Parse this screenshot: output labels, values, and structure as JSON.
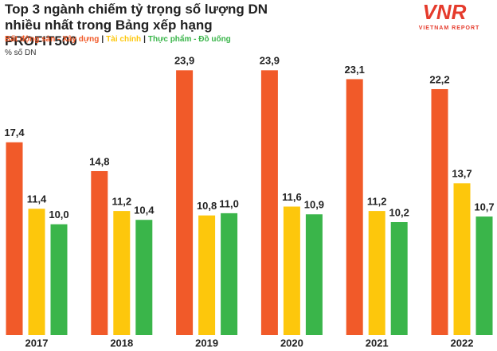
{
  "chart_data": {
    "type": "bar",
    "title": "Top 3 ngành chiếm tỷ trọng số lượng DN nhiều nhất trong Bảng xếp hạng PROFIT500",
    "y_label": "% số DN",
    "legend_separator": "|",
    "categories": [
      "2017",
      "2018",
      "2019",
      "2020",
      "2021",
      "2022"
    ],
    "series": [
      {
        "name": "Bất động sản - Xây dựng",
        "color": "#f15a29",
        "values": [
          17.4,
          14.8,
          23.9,
          23.9,
          23.1,
          22.2
        ],
        "value_labels": [
          "17,4",
          "14,8",
          "23,9",
          "23,9",
          "23,1",
          "22,2"
        ]
      },
      {
        "name": "Tài chính",
        "color": "#fdc70c",
        "values": [
          11.4,
          11.2,
          10.8,
          11.6,
          11.2,
          13.7
        ],
        "value_labels": [
          "11,4",
          "11,2",
          "10,8",
          "11,6",
          "11,2",
          "13,7"
        ]
      },
      {
        "name": "Thực phẩm - Đồ uống",
        "color": "#3ab54a",
        "values": [
          10.0,
          10.4,
          11.0,
          10.9,
          10.2,
          10.7
        ],
        "value_labels": [
          "10,0",
          "10,4",
          "11,0",
          "10,9",
          "10,2",
          "10,7"
        ]
      }
    ],
    "ylim": [
      0,
      25
    ]
  },
  "logo": {
    "mark": "VNR",
    "tagline": "VIETNAM REPORT"
  }
}
